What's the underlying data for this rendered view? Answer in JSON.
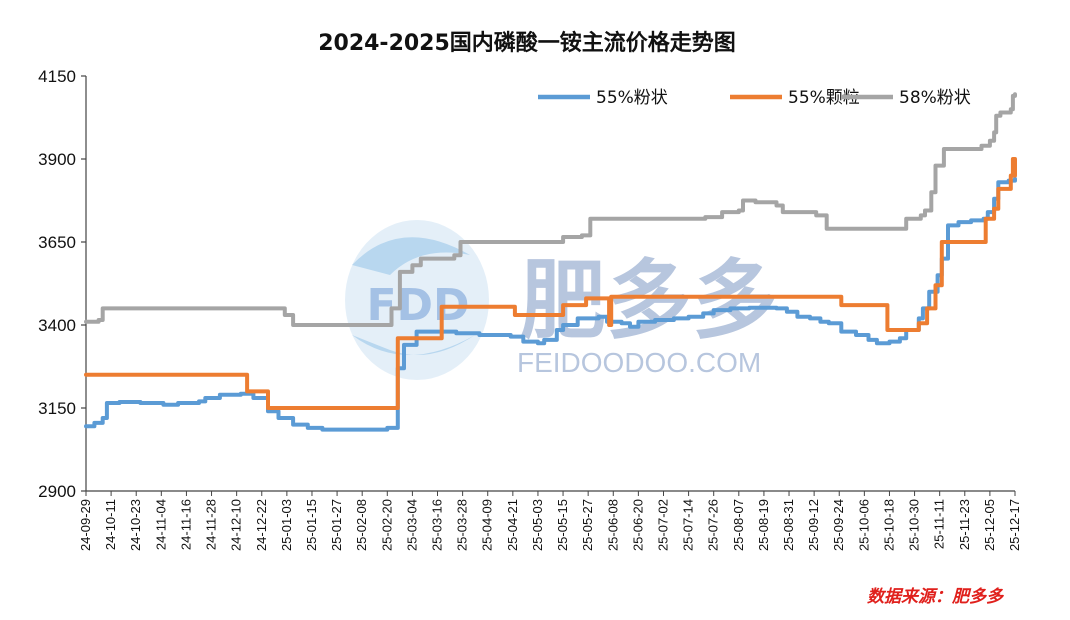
{
  "chart_data": {
    "type": "line",
    "title": "2024-2025国内磷酸一铵主流价格走势图",
    "xlabel": "",
    "ylabel": "",
    "ylim": [
      2900,
      4150
    ],
    "yticks": [
      2900,
      3150,
      3400,
      3650,
      3900,
      4150
    ],
    "x_tick_labels": [
      "24-09-29",
      "24-10-11",
      "24-10-23",
      "24-11-04",
      "24-11-16",
      "24-11-28",
      "24-12-10",
      "24-12-22",
      "25-01-03",
      "25-01-15",
      "25-01-27",
      "25-02-08",
      "25-02-20",
      "25-03-04",
      "25-03-16",
      "25-03-28",
      "25-04-09",
      "25-04-21",
      "25-05-03",
      "25-05-15",
      "25-05-27",
      "25-06-08",
      "25-06-20",
      "25-07-02",
      "25-07-14",
      "25-07-26",
      "25-08-07",
      "25-08-19",
      "25-08-31",
      "25-09-12",
      "25-09-24",
      "25-10-06",
      "25-10-18",
      "25-10-30",
      "25-11-11",
      "25-11-23",
      "25-12-05",
      "25-12-17"
    ],
    "x_range": [
      "2024-09-29",
      "2025-12-17"
    ],
    "legend_position": "top-right",
    "grid": false,
    "series": [
      {
        "name": "55%粉状",
        "color": "#5b9bd5",
        "points": [
          [
            "2024-09-29",
            3095
          ],
          [
            "2024-10-03",
            3105
          ],
          [
            "2024-10-07",
            3120
          ],
          [
            "2024-10-09",
            3165
          ],
          [
            "2024-10-15",
            3168
          ],
          [
            "2024-10-25",
            3165
          ],
          [
            "2024-11-05",
            3160
          ],
          [
            "2024-11-12",
            3165
          ],
          [
            "2024-11-22",
            3170
          ],
          [
            "2024-11-25",
            3180
          ],
          [
            "2024-12-02",
            3190
          ],
          [
            "2024-12-12",
            3193
          ],
          [
            "2024-12-18",
            3180
          ],
          [
            "2024-12-25",
            3140
          ],
          [
            "2024-12-30",
            3120
          ],
          [
            "2025-01-06",
            3100
          ],
          [
            "2025-01-13",
            3090
          ],
          [
            "2025-01-20",
            3085
          ],
          [
            "2025-02-17",
            3085
          ],
          [
            "2025-02-20",
            3090
          ],
          [
            "2025-02-25",
            3270
          ],
          [
            "2025-02-28",
            3340
          ],
          [
            "2025-03-06",
            3380
          ],
          [
            "2025-03-25",
            3375
          ],
          [
            "2025-04-05",
            3370
          ],
          [
            "2025-04-20",
            3365
          ],
          [
            "2025-04-26",
            3350
          ],
          [
            "2025-05-03",
            3345
          ],
          [
            "2025-05-06",
            3355
          ],
          [
            "2025-05-12",
            3385
          ],
          [
            "2025-05-15",
            3400
          ],
          [
            "2025-05-22",
            3420
          ],
          [
            "2025-06-01",
            3425
          ],
          [
            "2025-06-05",
            3410
          ],
          [
            "2025-06-12",
            3405
          ],
          [
            "2025-06-16",
            3395
          ],
          [
            "2025-06-20",
            3410
          ],
          [
            "2025-06-28",
            3415
          ],
          [
            "2025-07-07",
            3420
          ],
          [
            "2025-07-14",
            3425
          ],
          [
            "2025-07-21",
            3435
          ],
          [
            "2025-07-26",
            3445
          ],
          [
            "2025-08-03",
            3450
          ],
          [
            "2025-08-12",
            3452
          ],
          [
            "2025-08-25",
            3450
          ],
          [
            "2025-08-30",
            3440
          ],
          [
            "2025-09-04",
            3425
          ],
          [
            "2025-09-10",
            3420
          ],
          [
            "2025-09-15",
            3410
          ],
          [
            "2025-09-19",
            3405
          ],
          [
            "2025-09-25",
            3380
          ],
          [
            "2025-10-02",
            3370
          ],
          [
            "2025-10-08",
            3355
          ],
          [
            "2025-10-12",
            3345
          ],
          [
            "2025-10-18",
            3350
          ],
          [
            "2025-10-23",
            3360
          ],
          [
            "2025-10-26",
            3385
          ],
          [
            "2025-11-01",
            3420
          ],
          [
            "2025-11-03",
            3450
          ],
          [
            "2025-11-06",
            3500
          ],
          [
            "2025-11-10",
            3550
          ],
          [
            "2025-11-12",
            3600
          ],
          [
            "2025-11-15",
            3700
          ],
          [
            "2025-11-20",
            3710
          ],
          [
            "2025-11-26",
            3715
          ],
          [
            "2025-12-02",
            3720
          ],
          [
            "2025-12-04",
            3740
          ],
          [
            "2025-12-07",
            3780
          ],
          [
            "2025-12-09",
            3830
          ],
          [
            "2025-12-14",
            3835
          ],
          [
            "2025-12-15",
            3835
          ],
          [
            "2025-12-17",
            3840
          ]
        ]
      },
      {
        "name": "55%颗粒",
        "color": "#ed7d31",
        "points": [
          [
            "2024-09-29",
            3250
          ],
          [
            "2024-12-12",
            3250
          ],
          [
            "2024-12-15",
            3200
          ],
          [
            "2024-12-22",
            3200
          ],
          [
            "2024-12-25",
            3150
          ],
          [
            "2025-02-20",
            3150
          ],
          [
            "2025-02-25",
            3360
          ],
          [
            "2025-03-16",
            3360
          ],
          [
            "2025-03-18",
            3455
          ],
          [
            "2025-04-20",
            3455
          ],
          [
            "2025-04-22",
            3430
          ],
          [
            "2025-05-12",
            3430
          ],
          [
            "2025-05-15",
            3460
          ],
          [
            "2025-05-22",
            3460
          ],
          [
            "2025-05-26",
            3480
          ],
          [
            "2025-06-04",
            3480
          ],
          [
            "2025-06-06",
            3400
          ],
          [
            "2025-06-07",
            3485
          ],
          [
            "2025-09-21",
            3485
          ],
          [
            "2025-09-25",
            3460
          ],
          [
            "2025-10-15",
            3460
          ],
          [
            "2025-10-17",
            3385
          ],
          [
            "2025-10-30",
            3385
          ],
          [
            "2025-11-01",
            3405
          ],
          [
            "2025-11-05",
            3450
          ],
          [
            "2025-11-09",
            3520
          ],
          [
            "2025-11-12",
            3650
          ],
          [
            "2025-12-01",
            3650
          ],
          [
            "2025-12-03",
            3720
          ],
          [
            "2025-12-07",
            3750
          ],
          [
            "2025-12-09",
            3810
          ],
          [
            "2025-12-14",
            3810
          ],
          [
            "2025-12-15",
            3850
          ],
          [
            "2025-12-16",
            3900
          ],
          [
            "2025-12-17",
            3850
          ]
        ]
      },
      {
        "name": "58%粉状",
        "color": "#a5a5a5",
        "points": [
          [
            "2024-09-29",
            3410
          ],
          [
            "2024-10-05",
            3415
          ],
          [
            "2024-10-07",
            3450
          ],
          [
            "2024-12-27",
            3450
          ],
          [
            "2025-01-02",
            3430
          ],
          [
            "2025-01-06",
            3400
          ],
          [
            "2025-02-20",
            3400
          ],
          [
            "2025-02-22",
            3450
          ],
          [
            "2025-02-26",
            3560
          ],
          [
            "2025-03-04",
            3580
          ],
          [
            "2025-03-08",
            3600
          ],
          [
            "2025-03-24",
            3610
          ],
          [
            "2025-03-27",
            3650
          ],
          [
            "2025-05-13",
            3650
          ],
          [
            "2025-05-15",
            3665
          ],
          [
            "2025-05-24",
            3670
          ],
          [
            "2025-05-28",
            3720
          ],
          [
            "2025-06-16",
            3720
          ],
          [
            "2025-07-22",
            3725
          ],
          [
            "2025-07-30",
            3740
          ],
          [
            "2025-08-07",
            3745
          ],
          [
            "2025-08-09",
            3775
          ],
          [
            "2025-08-15",
            3770
          ],
          [
            "2025-08-25",
            3760
          ],
          [
            "2025-08-28",
            3740
          ],
          [
            "2025-09-13",
            3730
          ],
          [
            "2025-09-18",
            3690
          ],
          [
            "2025-10-23",
            3690
          ],
          [
            "2025-10-26",
            3720
          ],
          [
            "2025-11-02",
            3730
          ],
          [
            "2025-11-04",
            3745
          ],
          [
            "2025-11-07",
            3800
          ],
          [
            "2025-11-09",
            3880
          ],
          [
            "2025-11-13",
            3930
          ],
          [
            "2025-12-01",
            3940
          ],
          [
            "2025-12-05",
            3955
          ],
          [
            "2025-12-07",
            3980
          ],
          [
            "2025-12-08",
            4030
          ],
          [
            "2025-12-10",
            4040
          ],
          [
            "2025-12-15",
            4050
          ],
          [
            "2025-12-16",
            4090
          ],
          [
            "2025-12-17",
            4095
          ]
        ]
      }
    ],
    "source_note": "数据来源：肥多多",
    "watermark": {
      "logo_letters": "FDD",
      "brand": "肥多多",
      "url": "FEIDOODOO.COM"
    }
  }
}
